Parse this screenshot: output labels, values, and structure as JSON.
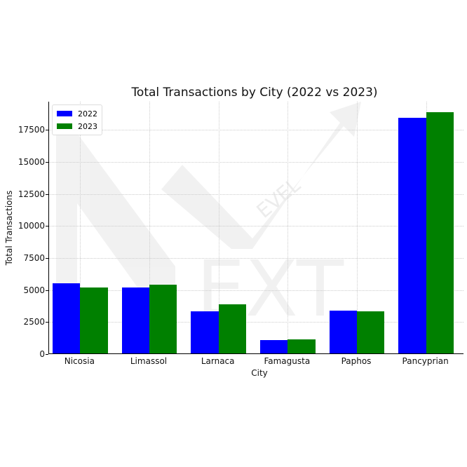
{
  "chart_data": {
    "type": "bar",
    "title": "Total Transactions by City (2022 vs 2023)",
    "xlabel": "City",
    "ylabel": "Total Transactions",
    "categories": [
      "Nicosia",
      "Limassol",
      "Larnaca",
      "Famagusta",
      "Paphos",
      "Pancyprian"
    ],
    "series": [
      {
        "name": "2022",
        "color": "#0000ff",
        "values": [
          5450,
          5150,
          3310,
          1020,
          3350,
          18390
        ]
      },
      {
        "name": "2023",
        "color": "#008000",
        "values": [
          5130,
          5380,
          3820,
          1120,
          3300,
          18820
        ]
      }
    ],
    "yticks": [
      "0",
      "2500",
      "5000",
      "7500",
      "10000",
      "12500",
      "15000",
      "17500"
    ],
    "ylim": [
      0,
      19700
    ],
    "grid": true,
    "legend_position": "upper left"
  },
  "watermark": {
    "text": "NEXT LEVEL Agency"
  }
}
